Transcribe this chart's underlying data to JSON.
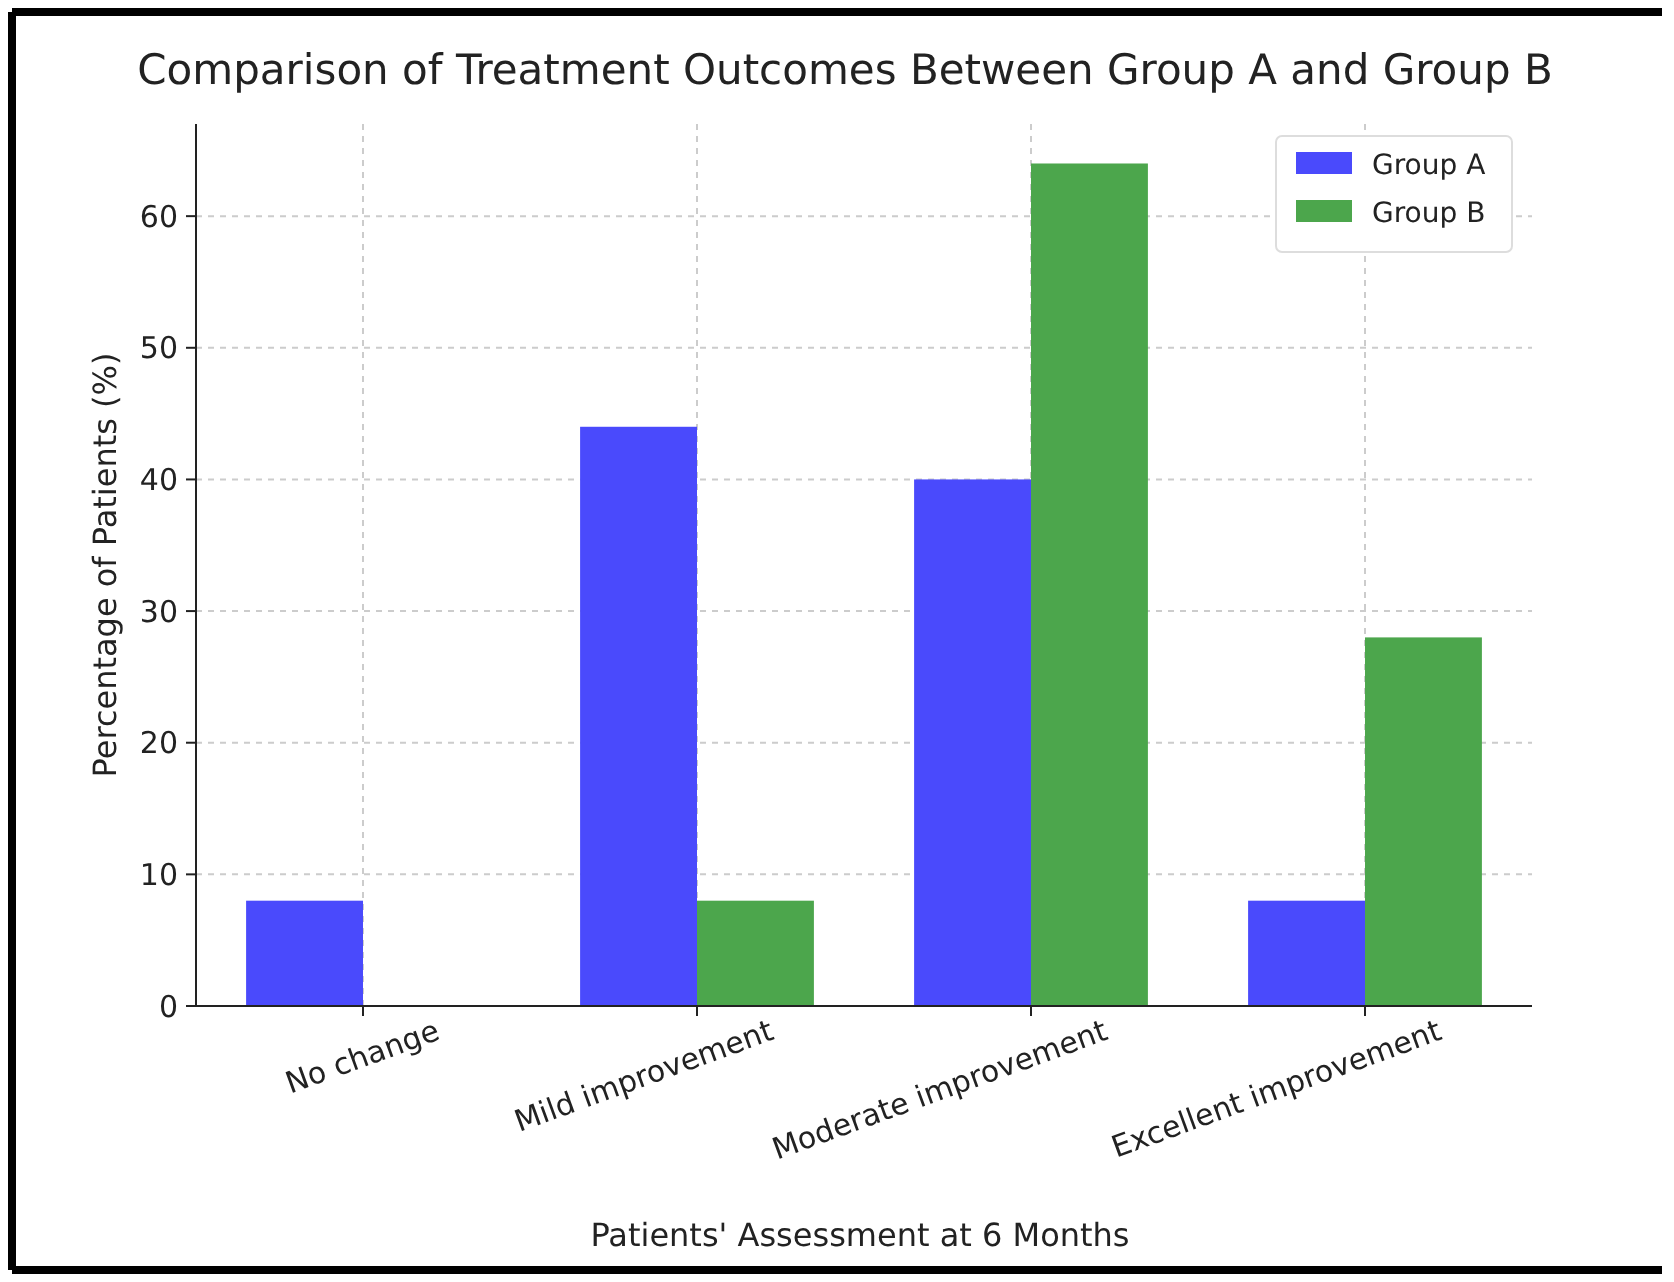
{
  "chart_data": {
    "type": "bar",
    "title": "Comparison of Treatment Outcomes Between Group A and Group B",
    "xlabel": "Patients' Assessment at 6 Months",
    "ylabel": "Percentage of Patients (%)",
    "categories": [
      "No change",
      "Mild improvement",
      "Moderate improvement",
      "Excellent improvement"
    ],
    "series": [
      {
        "name": "Group A",
        "color": "#4a4afc",
        "values": [
          8,
          44,
          40,
          8
        ]
      },
      {
        "name": "Group B",
        "color": "#4ca64c",
        "values": [
          0,
          8,
          64,
          28
        ]
      }
    ],
    "ylim": [
      0,
      67
    ],
    "yticks": [
      0,
      10,
      20,
      30,
      40,
      50,
      60
    ],
    "grid": true,
    "legend": "top right"
  }
}
